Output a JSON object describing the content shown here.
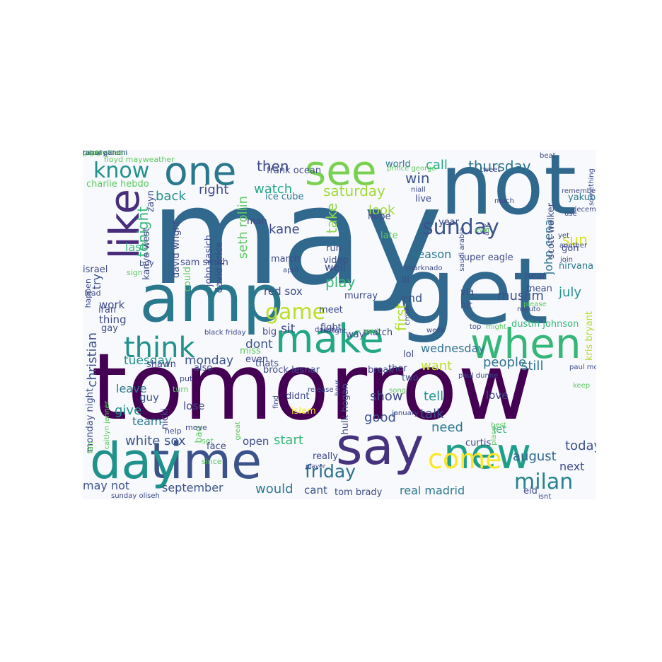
{
  "wordcloud": {
    "palette": [
      "#440154",
      "#3b528b",
      "#21918c",
      "#5ec962",
      "#fde725"
    ],
    "words": [
      {
        "text": "may",
        "color": "#31688e"
      },
      {
        "text": "tomorrow",
        "color": "#440154"
      },
      {
        "text": "get",
        "color": "#31688e"
      },
      {
        "text": "not",
        "color": "#31688e"
      },
      {
        "text": "amp",
        "color": "#2a788e"
      },
      {
        "text": "time",
        "color": "#3b528b"
      },
      {
        "text": "day",
        "color": "#21918c"
      },
      {
        "text": "say",
        "color": "#46337e"
      },
      {
        "text": "new",
        "color": "#1f9e89"
      },
      {
        "text": "make",
        "color": "#22a884"
      },
      {
        "text": "when",
        "color": "#35b779"
      },
      {
        "text": "see",
        "color": "#7ad151"
      },
      {
        "text": "one",
        "color": "#2a788e"
      },
      {
        "text": "like",
        "color": "#472d7b"
      },
      {
        "text": "think",
        "color": "#21918c"
      },
      {
        "text": "game",
        "color": "#bddf26"
      },
      {
        "text": "come",
        "color": "#fde725"
      },
      {
        "text": "milan",
        "color": "#26828e"
      },
      {
        "text": "friday",
        "color": "#2c728e"
      },
      {
        "text": "sunday",
        "color": "#3b528b"
      },
      {
        "text": "know",
        "color": "#21918c"
      },
      {
        "text": "then",
        "color": "#3e4a89"
      },
      {
        "text": "saturday",
        "color": "#a0da39"
      },
      {
        "text": "thursday",
        "color": "#2c728e"
      },
      {
        "text": "call",
        "color": "#22a884"
      },
      {
        "text": "win",
        "color": "#3b528b"
      },
      {
        "text": "watch",
        "color": "#22a884"
      },
      {
        "text": "right",
        "color": "#3e4a89"
      },
      {
        "text": "back",
        "color": "#21918c"
      },
      {
        "text": "tonight",
        "color": "#35b779"
      },
      {
        "text": "look",
        "color": "#a0da39"
      },
      {
        "text": "take",
        "color": "#8ed645"
      },
      {
        "text": "kane",
        "color": "#3e4a89"
      },
      {
        "text": "play",
        "color": "#35b779"
      },
      {
        "text": "well",
        "color": "#3e4a89"
      },
      {
        "text": "muslim",
        "color": "#3b528b"
      },
      {
        "text": "july",
        "color": "#21918c"
      },
      {
        "text": "sun",
        "color": "#d8e219"
      },
      {
        "text": "season",
        "color": "#2a788e"
      },
      {
        "text": "first",
        "color": "#b5de2b"
      },
      {
        "text": "end",
        "color": "#3b528b"
      },
      {
        "text": "wednesday",
        "color": "#2c728e"
      },
      {
        "text": "want",
        "color": "#bddf26"
      },
      {
        "text": "people",
        "color": "#2c728e"
      },
      {
        "text": "still",
        "color": "#2a788e"
      },
      {
        "text": "dont",
        "color": "#3b528b"
      },
      {
        "text": "sit",
        "color": "#3e4a89"
      },
      {
        "text": "work",
        "color": "#3e4a89"
      },
      {
        "text": "thing",
        "color": "#3e4a89"
      },
      {
        "text": "tuesday",
        "color": "#21918c"
      },
      {
        "text": "monday",
        "color": "#3b528b"
      },
      {
        "text": "christian",
        "color": "#3b528b"
      },
      {
        "text": "show",
        "color": "#3e4a89"
      },
      {
        "text": "good",
        "color": "#3b528b"
      },
      {
        "text": "tell",
        "color": "#21918c"
      },
      {
        "text": "talk",
        "color": "#3b528b"
      },
      {
        "text": "need",
        "color": "#2a788e"
      },
      {
        "text": "give",
        "color": "#21918c"
      },
      {
        "text": "start",
        "color": "#35b779"
      },
      {
        "text": "white sox",
        "color": "#3b528b"
      },
      {
        "text": "open",
        "color": "#3e4a89"
      },
      {
        "text": "today",
        "color": "#3b528b"
      },
      {
        "text": "august",
        "color": "#31688e"
      },
      {
        "text": "next",
        "color": "#3e4a89"
      },
      {
        "text": "may not",
        "color": "#3b528b"
      },
      {
        "text": "september",
        "color": "#3b528b"
      },
      {
        "text": "would",
        "color": "#2a788e"
      },
      {
        "text": "cant",
        "color": "#3b528b"
      },
      {
        "text": "real madrid",
        "color": "#2a788e"
      },
      {
        "text": "red sox",
        "color": "#3e4a89"
      },
      {
        "text": "john cena",
        "color": "#2c728e"
      },
      {
        "text": "seth rollin",
        "color": "#5ec962"
      },
      {
        "text": "last",
        "color": "#35b779"
      },
      {
        "text": "try",
        "color": "#3b528b"
      },
      {
        "text": "leave",
        "color": "#2a788e"
      },
      {
        "text": "team",
        "color": "#2a788e"
      },
      {
        "text": "guy",
        "color": "#3b528b"
      },
      {
        "text": "lose",
        "color": "#3e4a89"
      },
      {
        "text": "let",
        "color": "#35b779"
      },
      {
        "text": "love",
        "color": "#3e4a89"
      },
      {
        "text": "murray",
        "color": "#3e4a89"
      },
      {
        "text": "meet",
        "color": "#3e4a89"
      },
      {
        "text": "fight",
        "color": "#3e4a89"
      },
      {
        "text": "run",
        "color": "#3e4a89"
      },
      {
        "text": "video",
        "color": "#3e4a89"
      },
      {
        "text": "hope",
        "color": "#3e4a89"
      },
      {
        "text": "late",
        "color": "#5ec962"
      },
      {
        "text": "live",
        "color": "#3e4a89"
      },
      {
        "text": "year",
        "color": "#3e4a89"
      },
      {
        "text": "hit",
        "color": "#3e4a89"
      },
      {
        "text": "via",
        "color": "#3e4a89"
      },
      {
        "text": "ill",
        "color": "#3e4a89"
      },
      {
        "text": "lol",
        "color": "#3e4a89"
      },
      {
        "text": "two",
        "color": "#3e4a89"
      },
      {
        "text": "thor",
        "color": "#3e4a89"
      },
      {
        "text": "break",
        "color": "#3e4a89"
      },
      {
        "text": "march",
        "color": "#3e4a89"
      },
      {
        "text": "man",
        "color": "#3e4a89"
      },
      {
        "text": "ice cube",
        "color": "#2a788e"
      },
      {
        "text": "frank ocean",
        "color": "#3e4a89"
      },
      {
        "text": "world",
        "color": "#2a788e"
      },
      {
        "text": "super eagle",
        "color": "#3e4a89"
      },
      {
        "text": "nirvana",
        "color": "#2a788e"
      },
      {
        "text": "hear",
        "color": "#3e4a89"
      },
      {
        "text": "mean",
        "color": "#3e4a89"
      },
      {
        "text": "yakub",
        "color": "#2a788e"
      },
      {
        "text": "gon",
        "color": "#3e4a89"
      },
      {
        "text": "dustin johnson",
        "color": "#35b779"
      },
      {
        "text": "kris bryant",
        "color": "#b5de2b"
      },
      {
        "text": "scott walker",
        "color": "#3e4a89"
      },
      {
        "text": "israel",
        "color": "#3e4a89"
      },
      {
        "text": "iran",
        "color": "#3e4a89"
      },
      {
        "text": "gay",
        "color": "#3e4a89"
      },
      {
        "text": "john kasich",
        "color": "#3e4a89"
      },
      {
        "text": "david wright",
        "color": "#3e4a89"
      },
      {
        "text": "david price",
        "color": "#3e4a89"
      },
      {
        "text": "kanye west",
        "color": "#3e4a89"
      },
      {
        "text": "zayn",
        "color": "#3e4a89"
      },
      {
        "text": "sam smith",
        "color": "#3e4a89"
      },
      {
        "text": "charlie hebdo",
        "color": "#5ec962"
      },
      {
        "text": "floyd mayweather",
        "color": "#5ec962"
      },
      {
        "text": "brock lesnar",
        "color": "#3e4a89"
      },
      {
        "text": "hulk hogan",
        "color": "#3e4a89"
      },
      {
        "text": "tom brady",
        "color": "#3e4a89"
      },
      {
        "text": "eid",
        "color": "#3e4a89"
      },
      {
        "text": "curtis",
        "color": "#3e4a89"
      },
      {
        "text": "nicki",
        "color": "#3e4a89"
      },
      {
        "text": "monday night",
        "color": "#3e4a89"
      },
      {
        "text": "shawn",
        "color": "#3e4a89"
      },
      {
        "text": "also",
        "color": "#3e4a89"
      },
      {
        "text": "face",
        "color": "#3e4a89"
      },
      {
        "text": "really",
        "color": "#3e4a89"
      },
      {
        "text": "didnt",
        "color": "#3e4a89"
      },
      {
        "text": "islam",
        "color": "#fde725"
      },
      {
        "text": "thats",
        "color": "#3e4a89"
      },
      {
        "text": "big",
        "color": "#3e4a89"
      },
      {
        "text": "miss",
        "color": "#5ec962"
      },
      {
        "text": "even",
        "color": "#3e4a89"
      },
      {
        "text": "match",
        "color": "#3e4a89"
      },
      {
        "text": "way",
        "color": "#3e4a89"
      },
      {
        "text": "could",
        "color": "#5ec962"
      },
      {
        "text": "bad",
        "color": "#5ec962"
      },
      {
        "text": "set",
        "color": "#5ec962"
      },
      {
        "text": "since",
        "color": "#5ec962"
      },
      {
        "text": "move",
        "color": "#3e4a89"
      },
      {
        "text": "help",
        "color": "#3e4a89"
      },
      {
        "text": "put",
        "color": "#3e4a89"
      },
      {
        "text": "turn",
        "color": "#5ec962"
      },
      {
        "text": "fan",
        "color": "#5ec962"
      },
      {
        "text": "buy",
        "color": "#3e4a89"
      },
      {
        "text": "sign",
        "color": "#5ec962"
      },
      {
        "text": "lead",
        "color": "#3e4a89"
      },
      {
        "text": "happen",
        "color": "#3e4a89"
      },
      {
        "text": "black friday",
        "color": "#3e4a89"
      },
      {
        "text": "april",
        "color": "#3e4a89"
      },
      {
        "text": "week",
        "color": "#3e4a89"
      },
      {
        "text": "top",
        "color": "#3e4a89"
      },
      {
        "text": "naruto",
        "color": "#3e4a89"
      },
      {
        "text": "sharknado",
        "color": "#3e4a89"
      },
      {
        "text": "please",
        "color": "#5ec962"
      },
      {
        "text": "cmon",
        "color": "#3e4a89"
      },
      {
        "text": "read",
        "color": "#5ec962"
      },
      {
        "text": "twilight",
        "color": "#3e4a89"
      },
      {
        "text": "doesnt",
        "color": "#3e4a89"
      },
      {
        "text": "might",
        "color": "#5ec962"
      },
      {
        "text": "paul dunne",
        "color": "#3e4a89"
      },
      {
        "text": "song",
        "color": "#5ec962"
      },
      {
        "text": "release",
        "color": "#3e4a89"
      },
      {
        "text": "january",
        "color": "#3e4a89"
      },
      {
        "text": "place",
        "color": "#5ec962"
      },
      {
        "text": "best",
        "color": "#5ec962"
      },
      {
        "text": "isnt",
        "color": "#3e4a89"
      },
      {
        "text": "keep",
        "color": "#5ec962"
      },
      {
        "text": "paul mccartney",
        "color": "#3e4a89"
      },
      {
        "text": "join",
        "color": "#3e4a89"
      },
      {
        "text": "another",
        "color": "#3e4a89"
      },
      {
        "text": "yet",
        "color": "#3e4a89"
      },
      {
        "text": "use",
        "color": "#3e4a89"
      },
      {
        "text": "december",
        "color": "#3e4a89"
      },
      {
        "text": "remember",
        "color": "#3e4a89"
      },
      {
        "text": "something",
        "color": "#3e4a89"
      },
      {
        "text": "beat",
        "color": "#3e4a89"
      },
      {
        "text": "tweet",
        "color": "#3e4a89"
      },
      {
        "text": "much",
        "color": "#3e4a89"
      },
      {
        "text": "ask",
        "color": "#3e4a89"
      },
      {
        "text": "ever",
        "color": "#5ec962"
      },
      {
        "text": "saudi arabia",
        "color": "#3e4a89"
      },
      {
        "text": "niall",
        "color": "#3e4a89"
      },
      {
        "text": "prince george",
        "color": "#5ec962"
      },
      {
        "text": "hour",
        "color": "#3e4a89"
      },
      {
        "text": "find",
        "color": "#3e4a89"
      },
      {
        "text": "player",
        "color": "#3e4a89"
      },
      {
        "text": "great",
        "color": "#5ec962"
      },
      {
        "text": "caitlyn jenner",
        "color": "#5ec962"
      },
      {
        "text": "sunday oliseh",
        "color": "#3e4a89"
      },
      {
        "text": "rousey",
        "color": "#3e4a89"
      },
      {
        "text": "google",
        "color": "#5ec962"
      },
      {
        "text": "big brother",
        "color": "#5ec962"
      },
      {
        "text": "jason aldean",
        "color": "#5ec962"
      },
      {
        "text": "rahul gandhi",
        "color": "#3e4a89"
      }
    ]
  }
}
